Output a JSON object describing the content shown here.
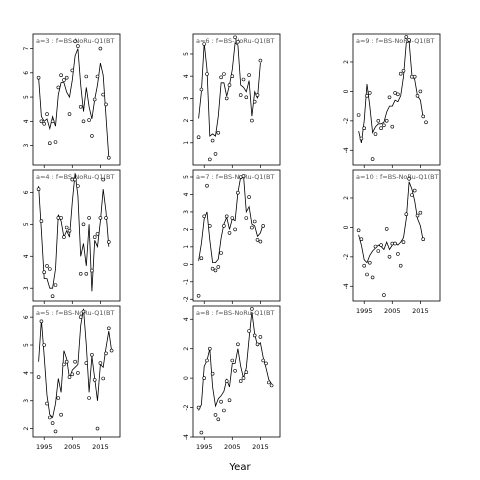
{
  "xlabel": "Year",
  "chart_data": [
    {
      "type": "line",
      "title": "a=3 : f=BS-NoRu-Q1(BT",
      "x": [
        1993,
        1994,
        1995,
        1996,
        1997,
        1998,
        1999,
        2000,
        2001,
        2002,
        2003,
        2004,
        2005,
        2006,
        2007,
        2008,
        2009,
        2010,
        2011,
        2012,
        2013,
        2014,
        2015,
        2016,
        2017,
        2018,
        2019
      ],
      "values": [
        5.8,
        4.0,
        3.9,
        4.3,
        3.1,
        4.0,
        3.15,
        5.4,
        5.9,
        5.7,
        5.8,
        4.3,
        6.1,
        7.3,
        7.1,
        4.6,
        4.0,
        5.85,
        4.05,
        3.4,
        4.9,
        5.85,
        7.0,
        5.1,
        4.7,
        2.5,
        null
      ],
      "fit": [
        5.8,
        4.2,
        4.0,
        4.1,
        3.7,
        4.2,
        3.8,
        5.1,
        5.6,
        5.6,
        5.2,
        5.0,
        5.7,
        6.7,
        7.0,
        5.5,
        4.4,
        5.4,
        4.6,
        4.1,
        4.9,
        5.5,
        6.4,
        5.9,
        4.2,
        2.5,
        null
      ],
      "ylim": [
        2.2,
        7.6
      ],
      "yticks": [
        3,
        4,
        5,
        6,
        7
      ]
    },
    {
      "type": "line",
      "title": "a=4 : f=BS-NoRu-Q1(BT",
      "x": [
        1993,
        1994,
        1995,
        1996,
        1997,
        1998,
        1999,
        2000,
        2001,
        2002,
        2003,
        2004,
        2005,
        2006,
        2007,
        2008,
        2009,
        2010,
        2011,
        2012,
        2013,
        2014,
        2015,
        2016,
        2017,
        2018,
        2019
      ],
      "values": [
        6.1,
        5.1,
        3.5,
        3.7,
        3.6,
        2.75,
        3.1,
        5.2,
        5.2,
        4.6,
        4.9,
        4.8,
        6.4,
        6.4,
        6.2,
        3.45,
        5.0,
        3.45,
        5.2,
        3.55,
        4.6,
        4.7,
        5.2,
        6.4,
        5.2,
        4.45,
        null
      ],
      "fit": [
        6.2,
        4.8,
        3.3,
        3.3,
        3.0,
        3.0,
        3.6,
        5.3,
        5.1,
        4.6,
        4.8,
        4.6,
        5.7,
        6.6,
        5.9,
        4.0,
        4.4,
        3.7,
        5.0,
        2.9,
        4.5,
        4.3,
        5.1,
        6.1,
        5.4,
        4.3,
        null
      ],
      "ylim": [
        2.6,
        6.7
      ],
      "yticks": [
        3,
        4,
        5,
        6
      ]
    },
    {
      "type": "line",
      "title": "a=5 : f=BS-NoRu-Q1(BT",
      "x": [
        1993,
        1994,
        1995,
        1996,
        1997,
        1998,
        1999,
        2000,
        2001,
        2002,
        2003,
        2004,
        2005,
        2006,
        2007,
        2008,
        2009,
        2010,
        2011,
        2012,
        2013,
        2014,
        2015,
        2016,
        2017,
        2018,
        2019
      ],
      "values": [
        3.85,
        5.85,
        5.0,
        2.9,
        2.4,
        2.2,
        1.9,
        3.1,
        2.5,
        4.3,
        4.4,
        3.85,
        3.95,
        4.4,
        4.0,
        6.0,
        6.2,
        4.35,
        3.1,
        4.65,
        3.75,
        2.0,
        4.35,
        3.8,
        4.7,
        5.6,
        4.8
      ],
      "fit": [
        4.4,
        5.9,
        4.6,
        3.2,
        2.5,
        2.4,
        2.9,
        3.8,
        3.3,
        4.8,
        4.5,
        3.8,
        4.1,
        4.2,
        4.3,
        5.7,
        6.3,
        5.0,
        3.3,
        4.6,
        3.8,
        3.0,
        4.3,
        4.2,
        4.9,
        5.5,
        4.8
      ],
      "ylim": [
        1.7,
        6.4
      ],
      "yticks": [
        2,
        3,
        4,
        5,
        6
      ]
    },
    {
      "type": "line",
      "title": "a=6 : f=BS-NoRu-Q1(BT",
      "x": [
        1993,
        1994,
        1995,
        1996,
        1997,
        1998,
        1999,
        2000,
        2001,
        2002,
        2003,
        2004,
        2005,
        2006,
        2007,
        2008,
        2009,
        2010,
        2011,
        2012,
        2013,
        2014,
        2015,
        2016,
        2017,
        2018,
        2019
      ],
      "values": [
        1.25,
        3.4,
        5.45,
        4.1,
        0.25,
        1.1,
        0.5,
        1.45,
        3.95,
        4.1,
        3.0,
        3.6,
        4.0,
        5.75,
        5.55,
        3.15,
        3.85,
        3.05,
        4.05,
        2.0,
        2.85,
        3.15,
        4.7,
        null,
        null,
        null,
        null
      ],
      "fit": [
        2.1,
        3.3,
        5.5,
        4.3,
        1.3,
        1.4,
        1.3,
        2.2,
        3.7,
        3.7,
        3.1,
        3.6,
        4.3,
        5.5,
        5.4,
        3.6,
        3.5,
        3.3,
        3.8,
        2.2,
        3.3,
        3.0,
        4.6,
        null,
        null,
        null,
        null
      ],
      "ylim": [
        0,
        5.9
      ],
      "yticks": [
        1,
        2,
        3,
        4,
        5
      ]
    },
    {
      "type": "line",
      "title": "a=7 : f=BS-NoRu-Q1(BT",
      "x": [
        1993,
        1994,
        1995,
        1996,
        1997,
        1998,
        1999,
        2000,
        2001,
        2002,
        2003,
        2004,
        2005,
        2006,
        2007,
        2008,
        2009,
        2010,
        2011,
        2012,
        2013,
        2014,
        2015,
        2016,
        2017,
        2018,
        2019
      ],
      "values": [
        -1.8,
        0.35,
        2.75,
        4.5,
        2.2,
        -0.25,
        -0.35,
        -0.15,
        0.65,
        2.2,
        2.75,
        1.8,
        2.65,
        2.0,
        4.1,
        5.0,
        5.05,
        2.65,
        3.85,
        2.1,
        2.45,
        1.4,
        1.3,
        2.2,
        null,
        null,
        null
      ],
      "fit": [
        0.2,
        1.2,
        2.6,
        3.0,
        1.4,
        0.1,
        0.1,
        0.3,
        1.5,
        2.3,
        2.7,
        2.0,
        2.6,
        2.5,
        4.1,
        5.0,
        5.1,
        3.0,
        3.3,
        2.3,
        2.2,
        1.6,
        1.8,
        2.3,
        null,
        null,
        null
      ],
      "ylim": [
        -2.1,
        5.4
      ],
      "yticks": [
        -2,
        -1,
        0,
        1,
        2,
        3,
        4,
        5
      ]
    },
    {
      "type": "line",
      "title": "a=8 : f=BS-NoRu-Q1(BT",
      "x": [
        1993,
        1994,
        1995,
        1996,
        1997,
        1998,
        1999,
        2000,
        2001,
        2002,
        2003,
        2004,
        2005,
        2006,
        2007,
        2008,
        2009,
        2010,
        2011,
        2012,
        2013,
        2014,
        2015,
        2016,
        2017,
        2018,
        2019
      ],
      "values": [
        -2.0,
        -3.7,
        0.0,
        1.2,
        2.0,
        0.3,
        -2.5,
        -2.8,
        -1.6,
        -2.2,
        -0.2,
        -1.5,
        1.2,
        0.5,
        2.3,
        -0.2,
        0.0,
        0.4,
        3.2,
        4.7,
        2.9,
        2.3,
        2.8,
        1.2,
        1.0,
        -0.3,
        -0.5
      ],
      "fit": [
        -2.2,
        -1.8,
        0.8,
        1.2,
        2.0,
        -0.6,
        -1.9,
        -1.4,
        -1.2,
        -0.9,
        -0.1,
        -0.6,
        1.0,
        1.0,
        2.0,
        0.8,
        0.0,
        0.7,
        2.7,
        4.5,
        3.0,
        2.2,
        2.4,
        1.4,
        0.7,
        -0.1,
        -0.4
      ],
      "ylim": [
        -4.0,
        4.9
      ],
      "yticks": [
        -4,
        -2,
        0,
        2,
        4
      ]
    },
    {
      "type": "line",
      "title": "a=9 : f=BS-NoRu-Q1(BT",
      "x": [
        1993,
        1994,
        1995,
        1996,
        1997,
        1998,
        1999,
        2000,
        2001,
        2002,
        2003,
        2004,
        2005,
        2006,
        2007,
        2008,
        2009,
        2010,
        2011,
        2012,
        2013,
        2014,
        2015,
        2016,
        2017,
        2018,
        2019
      ],
      "values": [
        -1.6,
        -3.2,
        -2.5,
        -0.3,
        -0.1,
        -4.6,
        -2.9,
        -2.0,
        -2.5,
        -2.3,
        -2.0,
        -0.4,
        -2.4,
        -0.1,
        -0.2,
        1.2,
        1.4,
        3.7,
        3.5,
        1.0,
        1.0,
        -0.3,
        0.0,
        -1.7,
        -2.1,
        null,
        null
      ],
      "fit": [
        -2.7,
        -3.5,
        -2.0,
        0.5,
        -1.0,
        -2.8,
        -2.4,
        -2.2,
        -2.2,
        -2.1,
        -1.4,
        -1.0,
        -1.0,
        -0.6,
        -0.7,
        -0.3,
        1.0,
        3.3,
        3.4,
        1.1,
        0.8,
        -0.3,
        -0.6,
        -1.8,
        null,
        null,
        null
      ],
      "ylim": [
        -5.0,
        3.9
      ],
      "yticks": [
        -4,
        -2,
        0,
        2
      ]
    },
    {
      "type": "line",
      "title": "a=10 : f=BS-NoRu-Q1(BT",
      "x": [
        1993,
        1994,
        1995,
        1996,
        1997,
        1998,
        1999,
        2000,
        2001,
        2002,
        2003,
        2004,
        2005,
        2006,
        2007,
        2008,
        2009,
        2010,
        2011,
        2012,
        2013,
        2014,
        2015,
        2016,
        2017,
        2018,
        2019
      ],
      "values": [
        -0.2,
        -0.8,
        -2.6,
        -3.2,
        -2.4,
        -3.4,
        -1.3,
        -1.6,
        -1.2,
        -4.6,
        -0.1,
        -2.0,
        -1.1,
        -1.1,
        -1.8,
        -2.6,
        -1.0,
        0.9,
        3.3,
        2.2,
        2.5,
        0.8,
        1.0,
        -0.8,
        null,
        null,
        null
      ],
      "fit": [
        -0.5,
        -1.2,
        -2.2,
        -2.4,
        -1.9,
        -1.6,
        -1.4,
        -1.2,
        -1.3,
        -1.5,
        -1.0,
        -1.5,
        -1.2,
        -1.0,
        -1.2,
        -1.0,
        -0.7,
        0.6,
        3.1,
        2.6,
        1.8,
        0.6,
        0.1,
        -0.9,
        null,
        null,
        null
      ],
      "ylim": [
        -5.0,
        3.9
      ],
      "yticks": [
        -4,
        -2,
        0,
        2
      ]
    }
  ]
}
